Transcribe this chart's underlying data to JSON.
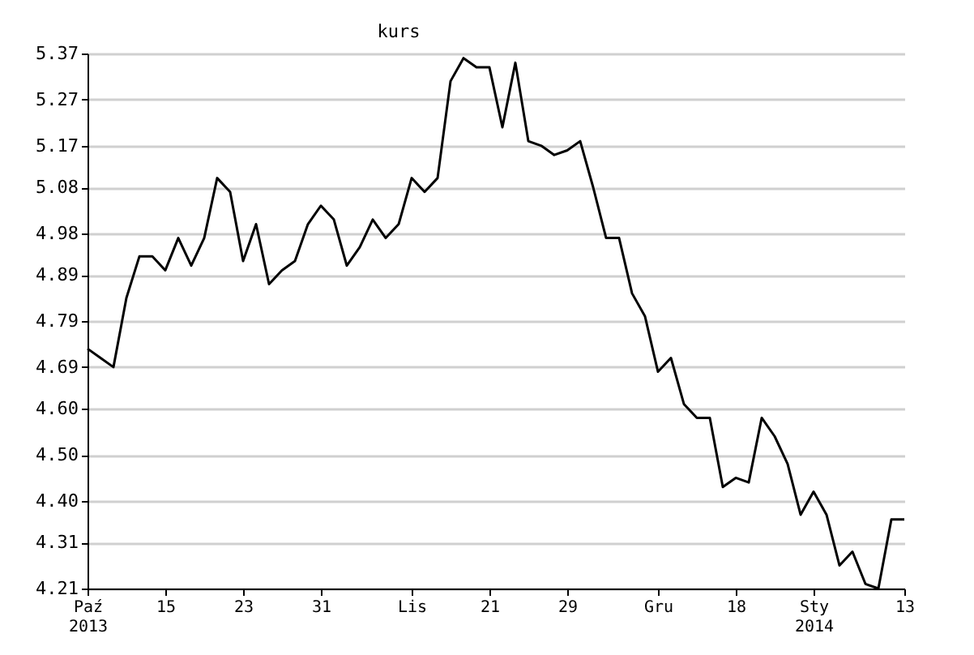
{
  "chart_data": {
    "type": "line",
    "title": "kurs",
    "categories": [
      "Paź\n2013",
      null,
      null,
      null,
      null,
      null,
      "15",
      null,
      null,
      null,
      null,
      null,
      "23",
      null,
      null,
      null,
      null,
      null,
      "31",
      null,
      null,
      null,
      null,
      null,
      null,
      "Lis",
      null,
      null,
      null,
      null,
      null,
      "21",
      null,
      null,
      null,
      null,
      null,
      "29",
      null,
      null,
      null,
      null,
      null,
      null,
      "Gru",
      null,
      null,
      null,
      null,
      null,
      "18",
      null,
      null,
      null,
      null,
      null,
      "Sty\n2014",
      null,
      null,
      null,
      null,
      null,
      null,
      "13"
    ],
    "series": [
      {
        "color": "#000000",
        "values": [
          4.73,
          4.71,
          4.69,
          4.84,
          4.93,
          4.93,
          4.9,
          4.97,
          4.91,
          4.97,
          5.1,
          5.07,
          4.92,
          5.0,
          4.87,
          4.9,
          4.92,
          5.0,
          5.04,
          5.01,
          4.91,
          4.95,
          5.01,
          4.97,
          5.0,
          5.1,
          5.07,
          5.1,
          5.31,
          5.36,
          5.34,
          5.34,
          5.21,
          5.35,
          5.18,
          5.17,
          5.15,
          5.16,
          5.18,
          5.08,
          4.97,
          4.97,
          4.85,
          4.8,
          4.68,
          4.71,
          4.61,
          4.58,
          4.58,
          4.43,
          4.45,
          4.44,
          4.58,
          4.54,
          4.48,
          4.37,
          4.42,
          4.37,
          4.26,
          4.29,
          4.22,
          4.21,
          4.36,
          4.36
        ]
      }
    ],
    "ylim": [
      4.21,
      5.37
    ],
    "yticks": [
      4.21,
      4.31,
      {
        "value": 4.4,
        "label": "4.40"
      },
      {
        "value": 4.5,
        "label": "4.50"
      },
      {
        "value": 4.6,
        "label": "4.60"
      },
      4.69,
      4.79,
      4.89,
      4.98,
      5.08,
      5.17,
      5.27,
      5.37
    ],
    "grid": "y",
    "marker": "none",
    "line_style": "solid"
  }
}
